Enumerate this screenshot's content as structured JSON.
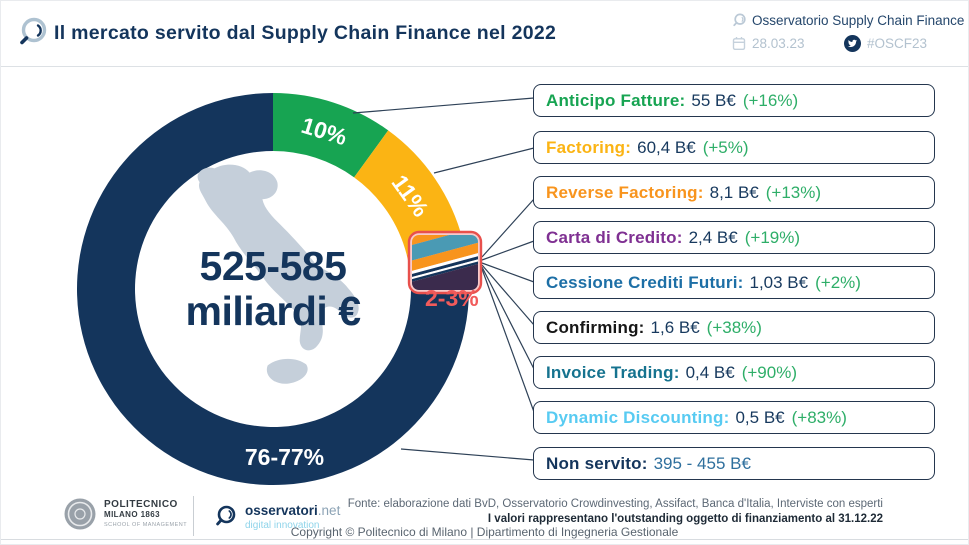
{
  "header": {
    "title": "Il mercato servito dal Supply Chain Finance nel 2022",
    "brand": "Osservatorio Supply Chain Finance",
    "date": "28.03.23",
    "hashtag": "#OSCF23"
  },
  "chart_data": {
    "type": "pie",
    "title": "Il mercato servito dal Supply Chain Finance nel 2022",
    "units": "B€ (miliardi di euro, outstanding al 31.12.22)",
    "center_value": "525-585",
    "center_unit": "miliardi €",
    "cluster_label": "2-3%",
    "cluster_label_color": "#F15B5B",
    "legend_position": "right",
    "segments": [
      {
        "name": "Anticipo Fatture",
        "share_pct": 10,
        "ring_label": "10%",
        "value_beur": 55,
        "growth_pct": 16,
        "color": "#17A452"
      },
      {
        "name": "Factoring",
        "share_pct": 11,
        "ring_label": "11%",
        "value_beur": 60.4,
        "growth_pct": 5,
        "color": "#FBB414"
      },
      {
        "name": "Reverse Factoring",
        "share_pct": 1.46,
        "value_beur": 8.1,
        "growth_pct": 13,
        "color": "#F8941D",
        "in_cluster": true
      },
      {
        "name": "Carta di Credito",
        "share_pct": 0.43,
        "value_beur": 2.4,
        "growth_pct": 19,
        "color": "#7F3092",
        "in_cluster": true
      },
      {
        "name": "Cessione Crediti Futuri",
        "share_pct": 0.19,
        "value_beur": 1.03,
        "growth_pct": 2,
        "color": "#1D6FA6",
        "in_cluster": true
      },
      {
        "name": "Confirming",
        "share_pct": 0.29,
        "value_beur": 1.6,
        "growth_pct": 38,
        "color": "#161616",
        "in_cluster": true
      },
      {
        "name": "Invoice Trading",
        "share_pct": 0.07,
        "value_beur": 0.4,
        "growth_pct": 90,
        "color": "#16738F",
        "in_cluster": true
      },
      {
        "name": "Dynamic Discounting",
        "share_pct": 0.09,
        "value_beur": 0.5,
        "growth_pct": 83,
        "color": "#58CBF2",
        "in_cluster": true
      },
      {
        "name": "Non servito",
        "share_pct": 76.47,
        "ring_label": "76-77%",
        "value_range_beur": "395 - 455",
        "color": "#14355C"
      }
    ]
  },
  "legend": {
    "value_color": "#17395E",
    "growth_color": "#2EAE68",
    "boxes": [
      {
        "label": "Anticipo Fatture:",
        "value": "55 B€",
        "growth": "(+16%)",
        "color": "#17A452"
      },
      {
        "label": "Factoring:",
        "value": "60,4 B€",
        "growth": "(+5%)",
        "color": "#FBB414"
      },
      {
        "label": "Reverse Factoring:",
        "value": "8,1 B€",
        "growth": "(+13%)",
        "color": "#F8941D"
      },
      {
        "label": "Carta di Credito:",
        "value": "2,4 B€",
        "growth": "(+19%)",
        "color": "#7F3092"
      },
      {
        "label": "Cessione Crediti Futuri:",
        "value": "1,03 B€",
        "growth": "(+2%)",
        "color": "#1D6FA6"
      },
      {
        "label": "Confirming:",
        "value": "1,6 B€",
        "growth": "(+38%)",
        "color": "#161616"
      },
      {
        "label": "Invoice Trading:",
        "value": "0,4 B€",
        "growth": "(+90%)",
        "color": "#16738F"
      },
      {
        "label": "Dynamic Discounting:",
        "value": "0,5 B€",
        "growth": "(+83%)",
        "color": "#58CBF2"
      },
      {
        "label": "Non servito:",
        "value": "395 - 455 B€",
        "growth": "",
        "color": "#14355C",
        "value_color": "#2E6F9D"
      }
    ]
  },
  "footer": {
    "fonte": "Fonte: elaborazione dati BvD, Osservatorio Crowdinvesting, Assifact, Banca d'Italia, Interviste con esperti",
    "note": "I valori rappresentano l'outstanding oggetto di finanziamento al 31.12.22",
    "copyright": "Copyright © Politecnico di Milano | Dipartimento di Ingegneria Gestionale",
    "logos": {
      "politecnico": {
        "line1": "POLITECNICO",
        "line2": "MILANO 1863",
        "line3": "SCHOOL OF MANAGEMENT"
      },
      "osservatori": {
        "name": "osservatori",
        "tld": ".net",
        "tagline": "digital innovation"
      }
    }
  }
}
